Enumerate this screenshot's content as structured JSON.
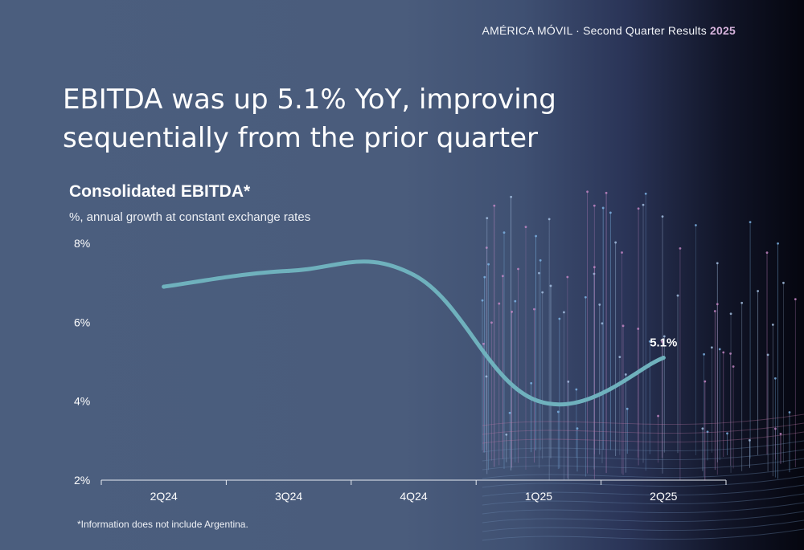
{
  "header": {
    "company": "AMÉRICA MÓVIL · Second Quarter Results ",
    "year": "2025"
  },
  "slide_title": "EBITDA was up 5.1% YoY, improving sequentially from the prior quarter",
  "footnote": "*Information does not include Argentina.",
  "colors": {
    "line": "#6fb1bd",
    "background": "#4b5e7e",
    "accent": "#d6b3dc"
  },
  "chart_data": {
    "type": "line",
    "title": "Consolidated EBITDA*",
    "subtitle": "%, annual growth at constant exchange rates",
    "categories": [
      "2Q24",
      "3Q24",
      "4Q24",
      "1Q25",
      "2Q25"
    ],
    "series": [
      {
        "values": [
          6.9,
          7.3,
          7.2,
          4.0,
          5.1
        ]
      }
    ],
    "ylim": [
      2,
      8
    ],
    "yticks": [
      2,
      4,
      6,
      8
    ],
    "ytick_labels": [
      "2%",
      "4%",
      "6%",
      "8%"
    ],
    "data_labels": [
      {
        "index": 4,
        "text": "5.1%"
      }
    ],
    "grid": false,
    "xlabel": "",
    "ylabel": ""
  }
}
